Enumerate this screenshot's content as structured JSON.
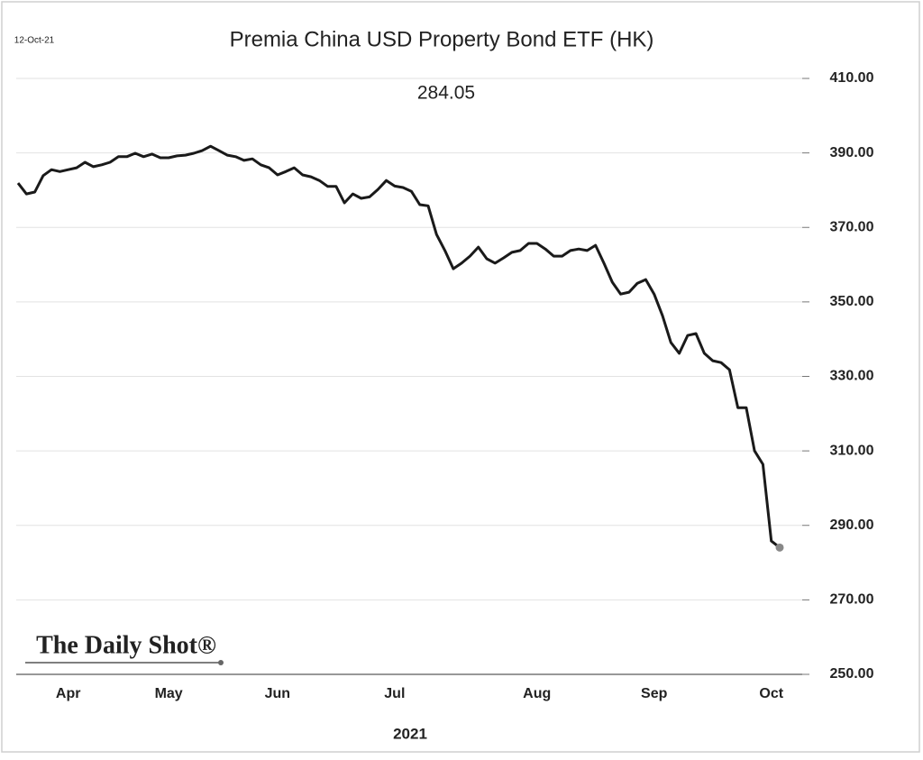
{
  "chart_data": {
    "type": "line",
    "title": "Premia China USD Property Bond ETF (HK)",
    "date": "12-Oct-21",
    "annotation": "284.05",
    "xlabel": "2021",
    "watermark": "The Daily Shot®",
    "categories": [
      null,
      null,
      null,
      null,
      null,
      null,
      "Apr",
      null,
      null,
      null,
      null,
      null,
      null,
      null,
      null,
      null,
      null,
      null,
      "May",
      null,
      null,
      null,
      null,
      null,
      null,
      null,
      null,
      null,
      null,
      null,
      null,
      "Jun",
      null,
      null,
      null,
      null,
      null,
      null,
      null,
      null,
      null,
      null,
      null,
      null,
      null,
      "Jul",
      null,
      null,
      null,
      null,
      null,
      null,
      null,
      null,
      null,
      null,
      null,
      null,
      null,
      null,
      null,
      null,
      "Aug",
      null,
      null,
      null,
      null,
      null,
      null,
      null,
      null,
      null,
      null,
      null,
      null,
      null,
      "Sep",
      null,
      null,
      null,
      null,
      null,
      null,
      null,
      null,
      null,
      null,
      null,
      null,
      null,
      "Oct",
      null
    ],
    "series": [
      {
        "name": "Premia China USD Property Bond ETF (HK)",
        "color": "#1a1a1a",
        "values": [
          381.9,
          379,
          379.5,
          383.9,
          385.5,
          385,
          385.5,
          386,
          387.5,
          386.3,
          386.8,
          387.5,
          389,
          389,
          389.9,
          389,
          389.7,
          388.7,
          388.7,
          389.2,
          389.4,
          389.9,
          390.6,
          391.8,
          390.6,
          389.4,
          389,
          388,
          388.4,
          386.8,
          386,
          384.1,
          385,
          386,
          384.1,
          383.6,
          382.6,
          381,
          381,
          376.6,
          379,
          377.8,
          378.2,
          380.2,
          382.6,
          381.1,
          380.7,
          379.7,
          376.1,
          375.8,
          368.1,
          363.8,
          358.9,
          360.4,
          362.3,
          364.7,
          361.6,
          360.4,
          361.8,
          363.3,
          363.8,
          365.7,
          365.7,
          364.2,
          362.3,
          362.3,
          363.8,
          364.2,
          363.8,
          365.2,
          360.4,
          355.3,
          352.1,
          352.6,
          355,
          356,
          352.1,
          346.3,
          339.1,
          336.2,
          341,
          341.5,
          336.2,
          334.2,
          333.7,
          331.8,
          321.6,
          321.6,
          310,
          306.4,
          285.8,
          284.05
        ]
      }
    ],
    "ylim": [
      250,
      410
    ],
    "yticks": [
      {
        "value": 250,
        "label": "250.00"
      },
      {
        "value": 270,
        "label": "270.00"
      },
      {
        "value": 290,
        "label": "290.00"
      },
      {
        "value": 310,
        "label": "310.00"
      },
      {
        "value": 330,
        "label": "330.00"
      },
      {
        "value": 350,
        "label": "350.00"
      },
      {
        "value": 370,
        "label": "370.00"
      },
      {
        "value": 390,
        "label": "390.00"
      },
      {
        "value": 410,
        "label": "410.00"
      }
    ],
    "grid": true,
    "end_marker_color": "#888888"
  }
}
